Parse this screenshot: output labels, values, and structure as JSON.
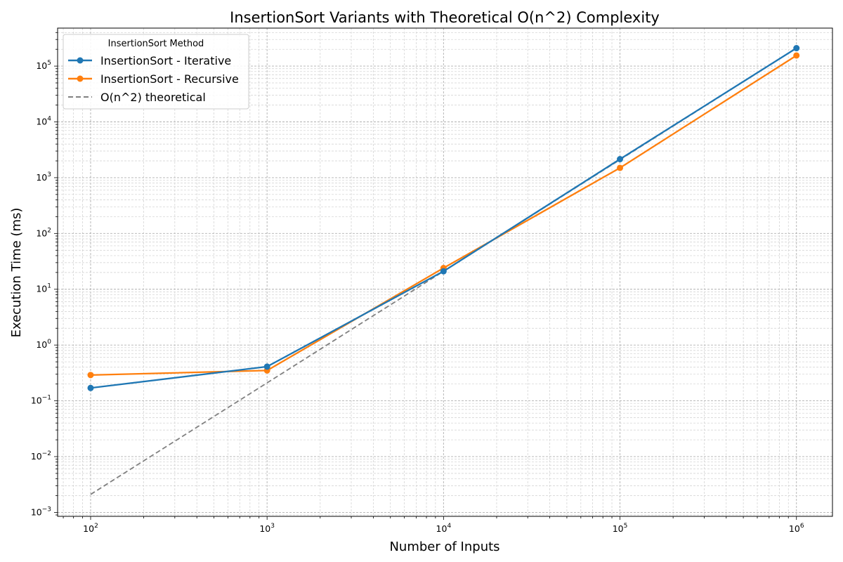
{
  "chart_data": {
    "type": "line",
    "title": "InsertionSort Variants with Theoretical O(n^2) Complexity",
    "xlabel": "Number of Inputs",
    "ylabel": "Execution Time (ms)",
    "xscale": "log",
    "yscale": "log",
    "xlim": [
      65,
      1600000
    ],
    "ylim": [
      0.00085,
      480000
    ],
    "grid": true,
    "legend": {
      "title": "InsertionSort Method",
      "placement": "top-left"
    },
    "x_ticks": [
      {
        "base": "10",
        "exp": "2",
        "value": 100
      },
      {
        "base": "10",
        "exp": "3",
        "value": 1000
      },
      {
        "base": "10",
        "exp": "4",
        "value": 10000
      },
      {
        "base": "10",
        "exp": "5",
        "value": 100000
      },
      {
        "base": "10",
        "exp": "6",
        "value": 1000000
      }
    ],
    "y_ticks": [
      {
        "base": "10",
        "exp": "−3",
        "value": 0.001
      },
      {
        "base": "10",
        "exp": "−2",
        "value": 0.01
      },
      {
        "base": "10",
        "exp": "−1",
        "value": 0.1
      },
      {
        "base": "10",
        "exp": "0",
        "value": 1
      },
      {
        "base": "10",
        "exp": "1",
        "value": 10
      },
      {
        "base": "10",
        "exp": "2",
        "value": 100
      },
      {
        "base": "10",
        "exp": "3",
        "value": 1000
      },
      {
        "base": "10",
        "exp": "4",
        "value": 10000
      },
      {
        "base": "10",
        "exp": "5",
        "value": 100000
      }
    ],
    "series": [
      {
        "name": "InsertionSort - Iterative",
        "color": "#1f77b4",
        "style": "solid-markers",
        "x": [
          100,
          1000,
          10000,
          100000,
          1000000
        ],
        "y": [
          0.17,
          0.41,
          21,
          2150,
          210000
        ]
      },
      {
        "name": "InsertionSort - Recursive",
        "color": "#ff7f0e",
        "style": "solid-markers",
        "x": [
          100,
          1000,
          10000,
          100000,
          1000000
        ],
        "y": [
          0.29,
          0.35,
          24,
          1500,
          155000
        ]
      },
      {
        "name": "O(n^2) theoretical",
        "color": "#808080",
        "style": "dashed",
        "x": [
          100,
          1000,
          10000,
          100000,
          1000000
        ],
        "y": [
          0.0021,
          0.21,
          21,
          2100,
          210000
        ]
      }
    ]
  }
}
